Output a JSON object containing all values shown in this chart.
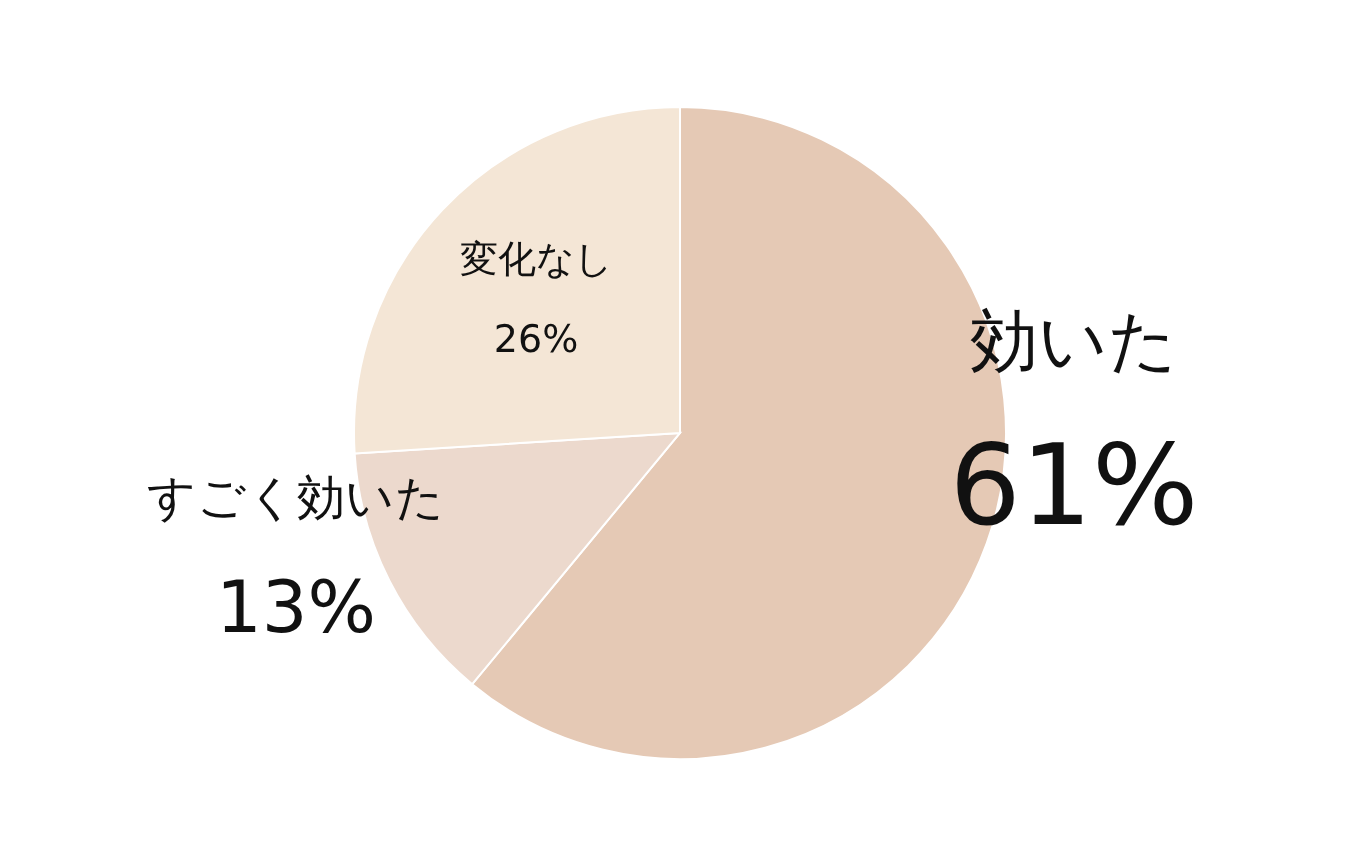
{
  "chart_data": {
    "type": "pie",
    "categories": [
      "効いた",
      "すごく効いた",
      "変化なし"
    ],
    "values": [
      61,
      13,
      26
    ],
    "value_labels": [
      "61%",
      "13%",
      "26%"
    ],
    "colors": [
      "#e5c9b5",
      "#ecd9cd",
      "#f4e6d6"
    ]
  }
}
